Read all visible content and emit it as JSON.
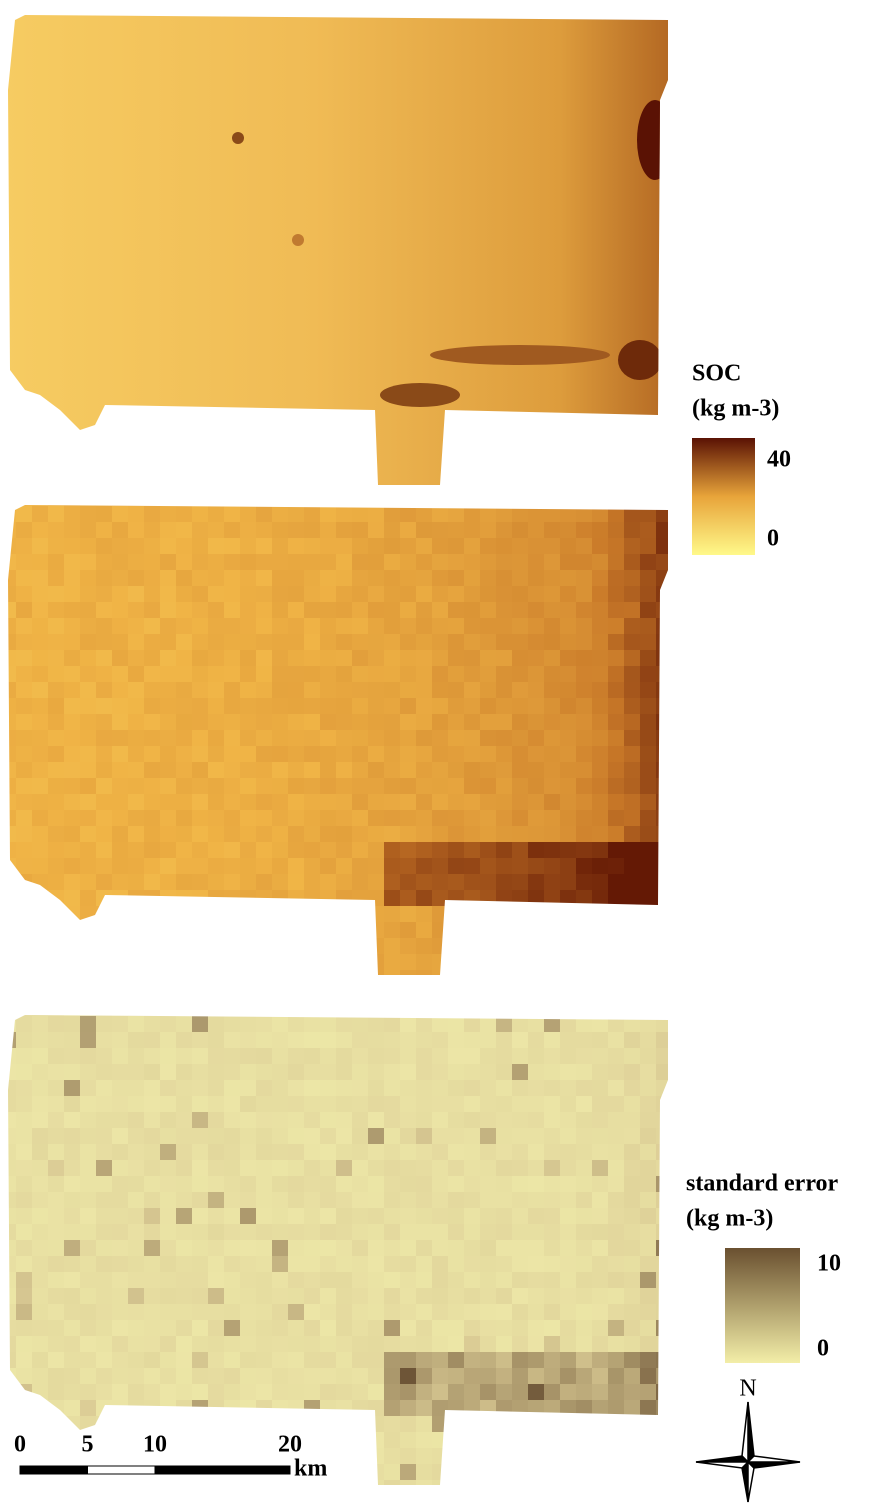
{
  "soc_legend": {
    "title": "SOC",
    "unit": "(kg m-3)",
    "max": "40",
    "min": "0"
  },
  "se_legend": {
    "title": "standard error",
    "unit": "(kg m-3)",
    "max": "10",
    "min": "0"
  },
  "scale_bar": {
    "ticks": [
      0,
      5,
      10,
      20
    ],
    "unit": "km"
  },
  "north_arrow": {
    "label": "N"
  }
}
